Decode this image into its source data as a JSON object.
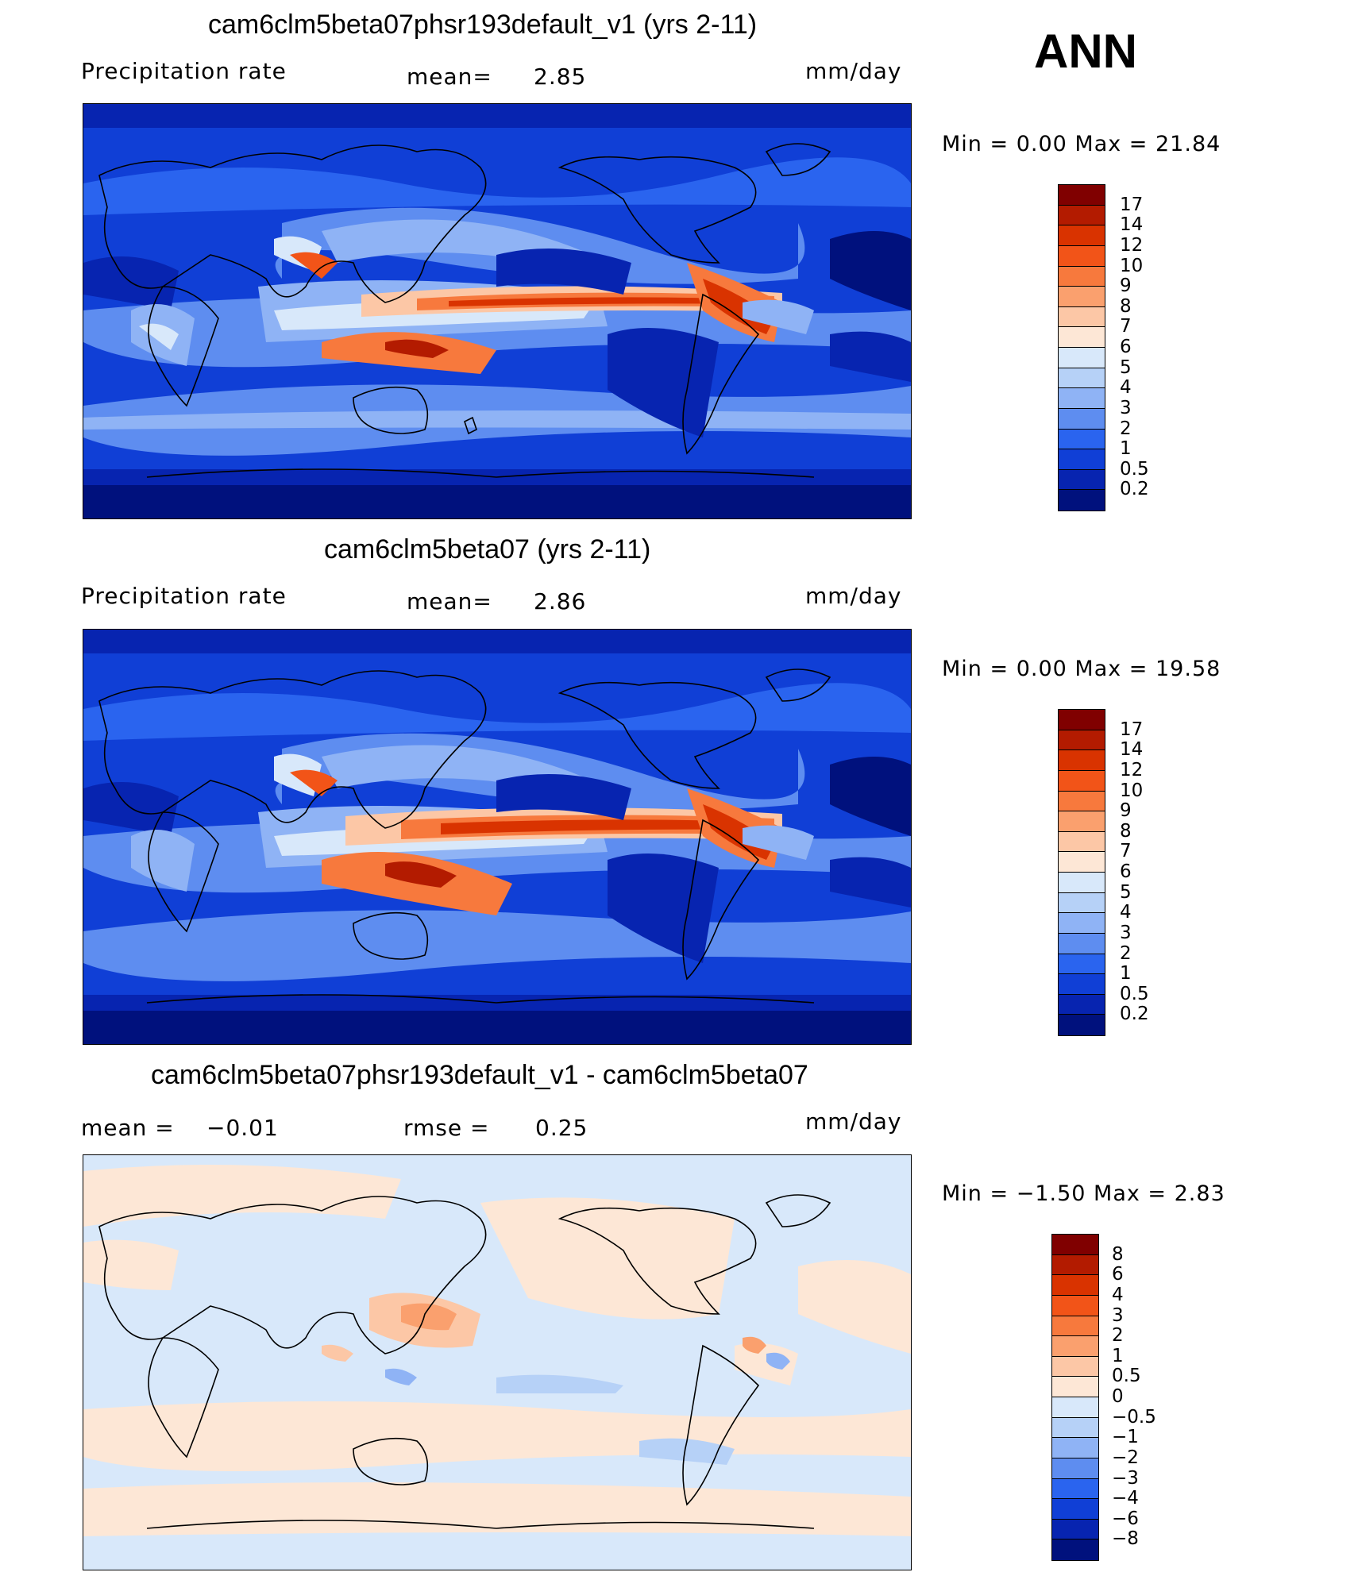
{
  "season": "ANN",
  "units": "mm/day",
  "panels": [
    {
      "id": "test",
      "title": "cam6clm5beta07phsr193default_v1 (yrs 2-11)",
      "left_label": "Precipitation  rate",
      "mid_label": "mean=",
      "mid_value": "2.85",
      "right_label": "mm/day",
      "minmax": "Min  =     0.00  Max  =     21.84",
      "colorbar": {
        "levels": [
          "17",
          "14",
          "12",
          "10",
          "9",
          "8",
          "7",
          "6",
          "5",
          "4",
          "3",
          "2",
          "1",
          "0.5",
          "0.2"
        ],
        "colors": [
          "#800000",
          "#b31b00",
          "#d93300",
          "#f25418",
          "#f7793d",
          "#faa06e",
          "#fcc7a6",
          "#fde7d6",
          "#d8e8fa",
          "#b6d1f7",
          "#8fb3f5",
          "#5e8df0",
          "#2a64ef",
          "#103fd6",
          "#0724b0",
          "#00117d"
        ]
      }
    },
    {
      "id": "control",
      "title": "cam6clm5beta07 (yrs 2-11)",
      "left_label": "Precipitation  rate",
      "mid_label": "mean=",
      "mid_value": "2.86",
      "right_label": "mm/day",
      "minmax": "Min  =     0.00  Max  =     19.58",
      "colorbar": {
        "levels": [
          "17",
          "14",
          "12",
          "10",
          "9",
          "8",
          "7",
          "6",
          "5",
          "4",
          "3",
          "2",
          "1",
          "0.5",
          "0.2"
        ],
        "colors": [
          "#800000",
          "#b31b00",
          "#d93300",
          "#f25418",
          "#f7793d",
          "#faa06e",
          "#fcc7a6",
          "#fde7d6",
          "#d8e8fa",
          "#b6d1f7",
          "#8fb3f5",
          "#5e8df0",
          "#2a64ef",
          "#103fd6",
          "#0724b0",
          "#00117d"
        ]
      }
    },
    {
      "id": "diff",
      "title": "cam6clm5beta07phsr193default_v1 - cam6clm5beta07",
      "left_label": "mean  =",
      "left_value": "−0.01",
      "mid_label": "rmse  =",
      "mid_value": "0.25",
      "right_label": "mm/day",
      "minmax": "Min  =   −1.50  Max  =      2.83",
      "colorbar": {
        "levels": [
          "8",
          "6",
          "4",
          "3",
          "2",
          "1",
          "0.5",
          "0",
          "−0.5",
          "−1",
          "−2",
          "−3",
          "−4",
          "−6",
          "−8"
        ],
        "colors": [
          "#800000",
          "#b31b00",
          "#d93300",
          "#f25418",
          "#f7793d",
          "#faa06e",
          "#fcc7a6",
          "#fde7d6",
          "#d8e8fa",
          "#b6d1f7",
          "#8fb3f5",
          "#5e8df0",
          "#2a64ef",
          "#103fd6",
          "#0724b0",
          "#00117d"
        ]
      }
    }
  ]
}
